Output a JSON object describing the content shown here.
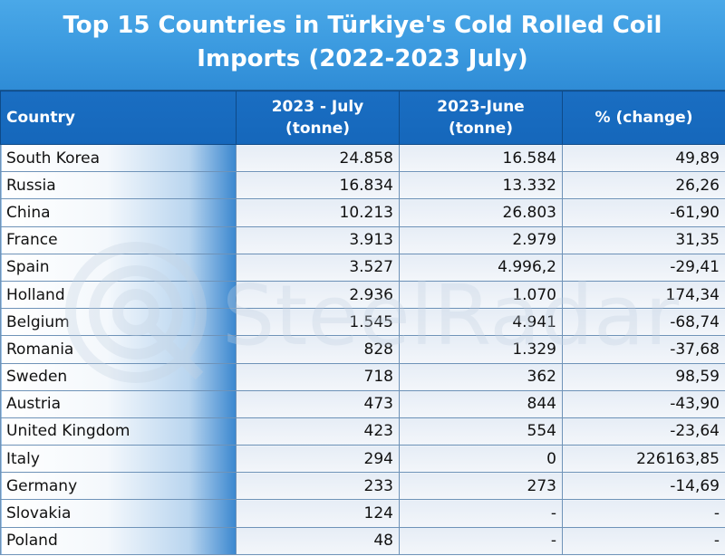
{
  "chart_data": {
    "type": "table",
    "title_line1": "Top 15 Countries in Türkiye's Cold Rolled Coil",
    "title_line2": "Imports (2022-2023 July)",
    "columns": [
      {
        "line1": "Country",
        "line2": ""
      },
      {
        "line1": "2023 - July",
        "line2": "(tonne)"
      },
      {
        "line1": "2023-June",
        "line2": "(tonne)"
      },
      {
        "line1": "% (change)",
        "line2": ""
      }
    ],
    "rows": [
      {
        "country": "South Korea",
        "july": "24.858",
        "june": "16.584",
        "change": "49,89"
      },
      {
        "country": "Russia",
        "july": "16.834",
        "june": "13.332",
        "change": "26,26"
      },
      {
        "country": "China",
        "july": "10.213",
        "june": "26.803",
        "change": "-61,90"
      },
      {
        "country": "France",
        "july": "3.913",
        "june": "2.979",
        "change": "31,35"
      },
      {
        "country": "Spain",
        "july": "3.527",
        "june": "4.996,2",
        "change": "-29,41"
      },
      {
        "country": "Holland",
        "july": "2.936",
        "june": "1.070",
        "change": "174,34"
      },
      {
        "country": "Belgium",
        "july": "1.545",
        "june": "4.941",
        "change": "-68,74"
      },
      {
        "country": "Romania",
        "july": "828",
        "june": "1.329",
        "change": "-37,68"
      },
      {
        "country": "Sweden",
        "july": "718",
        "june": "362",
        "change": "98,59"
      },
      {
        "country": "Austria",
        "july": "473",
        "june": "844",
        "change": "-43,90"
      },
      {
        "country": "United Kingdom",
        "july": "423",
        "june": "554",
        "change": "-23,64"
      },
      {
        "country": "Italy",
        "july": "294",
        "june": "0",
        "change": "226163,85"
      },
      {
        "country": "Germany",
        "july": "233",
        "june": "273",
        "change": "-14,69"
      },
      {
        "country": "Slovakia",
        "july": "124",
        "june": "-",
        "change": "-"
      },
      {
        "country": "Poland",
        "july": "48",
        "june": "-",
        "change": "-"
      }
    ]
  },
  "watermark": {
    "text": "SteelRadar",
    "color": "#c5d3e2"
  },
  "colors": {
    "title_bg": "#3c9be0",
    "header_bg": "#1a6ec2",
    "border": "#6f93b8"
  }
}
